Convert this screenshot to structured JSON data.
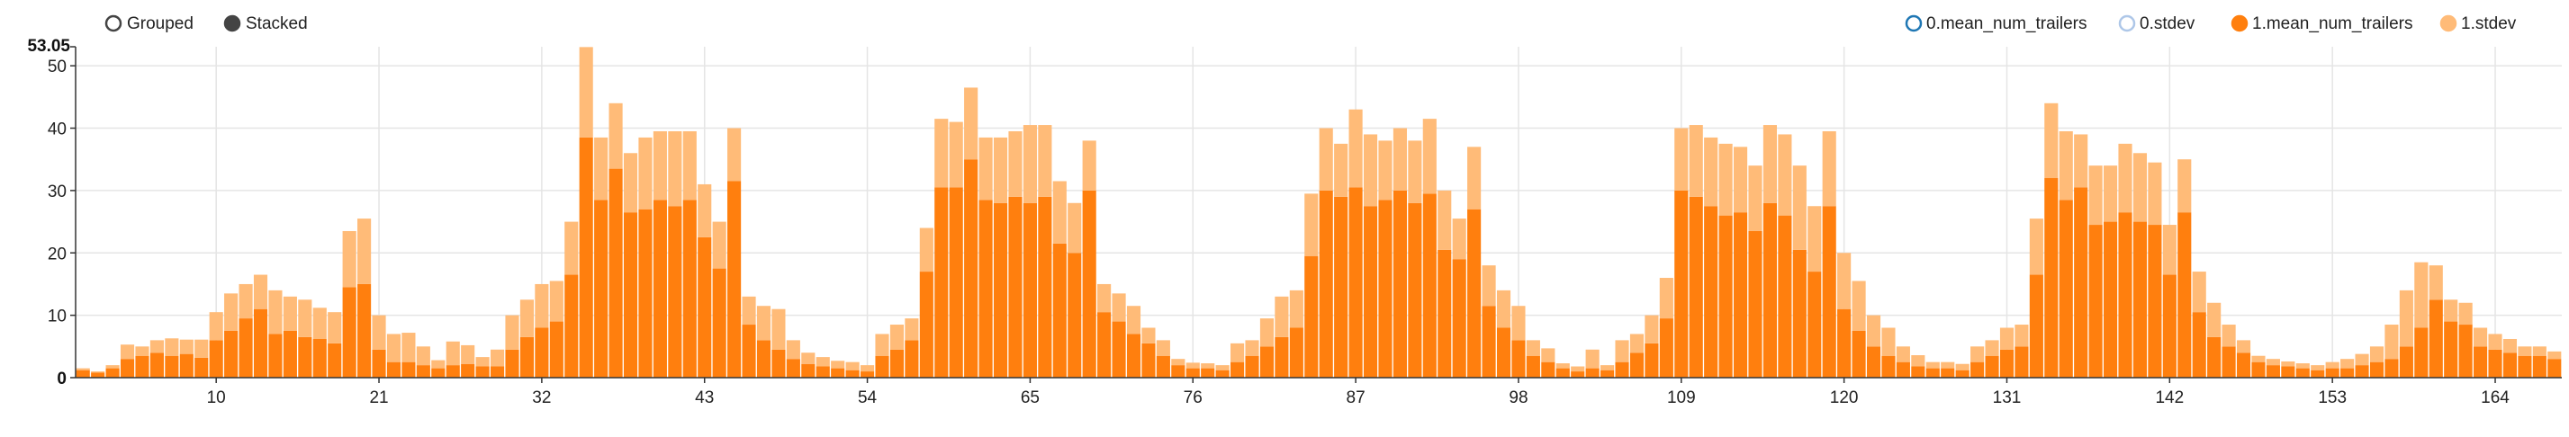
{
  "controls": {
    "options": [
      {
        "label": "Grouped",
        "selected": false
      },
      {
        "label": "Stacked",
        "selected": true
      }
    ]
  },
  "legend": {
    "entries": [
      {
        "label": "0.mean_num_trailers",
        "color": "#1f77b4",
        "filled": false
      },
      {
        "label": "0.stdev",
        "color": "#aec7e8",
        "filled": false
      },
      {
        "label": "1.mean_num_trailers",
        "color": "#ff7f0e",
        "filled": true
      },
      {
        "label": "1.stdev",
        "color": "#ffbb78",
        "filled": true
      }
    ]
  },
  "chart_data": {
    "type": "bar",
    "mode": "stacked",
    "title": "",
    "xlabel": "",
    "ylabel": "",
    "x_start": 1,
    "x_end": 168,
    "xlim": [
      1,
      168
    ],
    "ylim": [
      0,
      53.05
    ],
    "ymax_label": "53.05",
    "y_ticks": [
      0,
      10,
      20,
      30,
      40,
      50
    ],
    "x_ticks": [
      10,
      21,
      32,
      43,
      54,
      65,
      76,
      87,
      98,
      109,
      120,
      131,
      142,
      153,
      164
    ],
    "grid": true,
    "legend_position": "top-right",
    "series": [
      {
        "name": "1.mean_num_trailers",
        "color": "#ff7f0e",
        "values": [
          1.2,
          0.8,
          1.5,
          3.0,
          3.5,
          4.0,
          3.5,
          3.8,
          3.2,
          6.0,
          7.5,
          9.5,
          11.0,
          7.0,
          7.5,
          6.5,
          6.2,
          5.5,
          14.5,
          15.0,
          4.5,
          2.5,
          2.5,
          2.0,
          1.5,
          2.0,
          2.2,
          1.8,
          1.8,
          4.5,
          6.5,
          8.0,
          9.0,
          16.5,
          38.5,
          28.5,
          33.5,
          26.5,
          27.0,
          28.5,
          27.5,
          28.5,
          22.5,
          17.5,
          31.5,
          8.5,
          6.0,
          4.5,
          3.0,
          2.2,
          1.8,
          1.5,
          1.2,
          1.0,
          3.5,
          4.5,
          6.0,
          17.0,
          30.5,
          30.5,
          35.0,
          28.5,
          28.0,
          29.0,
          28.0,
          29.0,
          21.5,
          20.0,
          30.0,
          10.5,
          9.0,
          7.0,
          5.5,
          3.5,
          2.0,
          1.5,
          1.5,
          1.2,
          2.5,
          3.5,
          5.0,
          6.5,
          8.0,
          19.5,
          30.0,
          29.0,
          30.5,
          27.5,
          28.5,
          30.0,
          28.0,
          29.5,
          20.5,
          19.0,
          27.0,
          11.5,
          8.0,
          6.0,
          3.5,
          2.5,
          1.5,
          1.0,
          1.5,
          1.2,
          2.5,
          4.0,
          5.5,
          9.5,
          30.0,
          29.0,
          27.5,
          26.0,
          26.5,
          23.5,
          28.0,
          26.0,
          20.5,
          17.0,
          27.5,
          11.0,
          7.5,
          5.0,
          3.5,
          2.5,
          1.8,
          1.5,
          1.5,
          1.2,
          2.5,
          3.5,
          4.5,
          5.0,
          16.5,
          32.0,
          28.5,
          30.5,
          24.5,
          25.0,
          26.5,
          25.0,
          24.5,
          16.5,
          26.5,
          10.5,
          6.5,
          5.0,
          4.0,
          2.5,
          2.0,
          1.8,
          1.5,
          1.2,
          1.5,
          1.5,
          2.0,
          2.5,
          3.0,
          5.0,
          8.0,
          12.5,
          9.0,
          8.5,
          5.0,
          4.5,
          4.0,
          3.5,
          3.5,
          3.0,
          2.5,
          2.0,
          1.8,
          1.5,
          1.5,
          1.5,
          1.2,
          1.2
        ]
      },
      {
        "name": "1.stdev",
        "color": "#ffbb78",
        "values": [
          0.3,
          0.2,
          0.5,
          2.3,
          1.5,
          2.0,
          2.8,
          2.3,
          2.9,
          4.5,
          6.0,
          5.5,
          5.5,
          7.0,
          5.5,
          6.0,
          5.0,
          5.0,
          9.0,
          10.5,
          5.5,
          4.5,
          4.7,
          3.0,
          1.3,
          3.8,
          3.0,
          1.5,
          2.7,
          5.5,
          6.0,
          7.0,
          6.5,
          8.5,
          14.5,
          10.0,
          10.5,
          9.5,
          11.5,
          11.0,
          12.0,
          11.0,
          8.5,
          7.5,
          8.5,
          4.5,
          5.5,
          6.5,
          3.0,
          1.8,
          1.5,
          1.2,
          1.3,
          1.0,
          3.5,
          4.0,
          3.5,
          7.0,
          11.0,
          10.5,
          11.5,
          10.0,
          10.5,
          10.5,
          12.5,
          11.5,
          10.0,
          8.0,
          8.0,
          4.5,
          4.5,
          4.5,
          2.5,
          2.5,
          1.0,
          0.9,
          0.8,
          0.8,
          3.0,
          2.5,
          4.5,
          6.5,
          6.0,
          10.0,
          10.0,
          8.5,
          12.5,
          11.5,
          9.5,
          10.0,
          10.0,
          12.0,
          9.5,
          6.5,
          10.0,
          6.5,
          6.0,
          5.5,
          2.5,
          2.2,
          0.8,
          0.8,
          3.0,
          0.8,
          3.5,
          3.0,
          4.5,
          6.5,
          10.0,
          11.5,
          11.0,
          11.5,
          10.5,
          10.5,
          12.5,
          13.0,
          13.5,
          10.5,
          12.0,
          9.0,
          8.0,
          5.0,
          4.5,
          2.5,
          1.8,
          1.0,
          1.0,
          1.0,
          2.5,
          2.5,
          3.5,
          3.5,
          9.0,
          12.0,
          11.0,
          8.5,
          9.5,
          9.0,
          11.0,
          11.0,
          10.0,
          8.0,
          8.5,
          6.5,
          5.5,
          3.5,
          2.0,
          1.0,
          1.0,
          0.8,
          0.8,
          0.8,
          1.0,
          1.5,
          1.8,
          2.5,
          5.5,
          9.0,
          10.5,
          5.5,
          3.5,
          3.5,
          3.0,
          2.5,
          2.2,
          1.5,
          1.5,
          1.2,
          1.2,
          1.2,
          1.2,
          1.0,
          1.0,
          0.8,
          0.8,
          0.8
        ]
      }
    ]
  }
}
